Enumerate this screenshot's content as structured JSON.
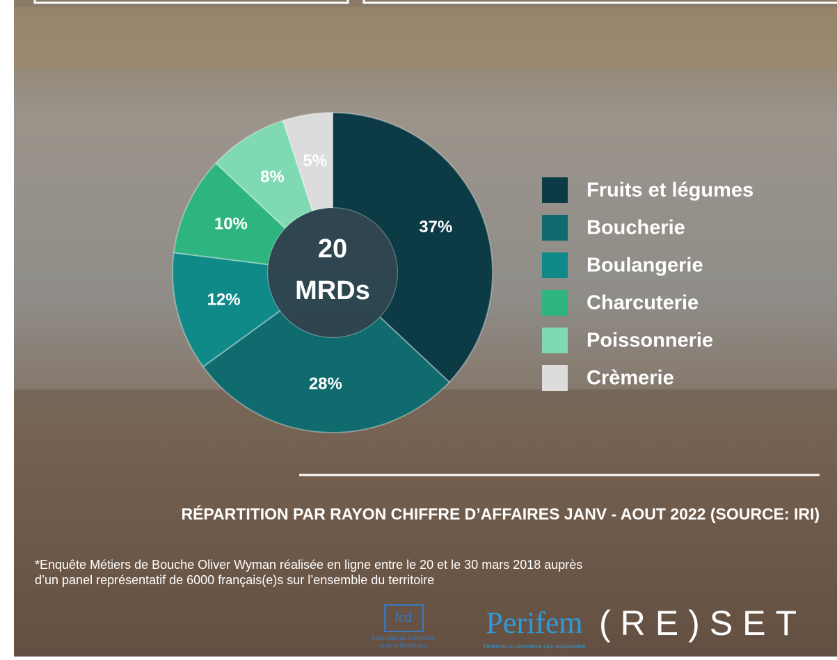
{
  "chart_data": {
    "type": "donut",
    "center_label": [
      "20",
      "MRDs"
    ],
    "categories": [
      "Fruits et légumes",
      "Boucherie",
      "Boulangerie",
      "Charcuterie",
      "Poissonnerie",
      "Crèmerie"
    ],
    "values": [
      37,
      28,
      12,
      10,
      8,
      5
    ],
    "value_labels": [
      "37%",
      "28%",
      "12%",
      "10%",
      "8%",
      "5%"
    ],
    "colors": [
      "#0c3a45",
      "#0f6b6d",
      "#0f8a89",
      "#2eb47e",
      "#7fdab3",
      "#dcdcdc"
    ],
    "legend": "right"
  },
  "caption": "RÉPARTITION PAR RAYON CHIFFRE D’AFFAIRES JANV - AOUT 2022 (SOURCE: IRI)",
  "footnote": [
    "*Enquête Métiers de Bouche Oliver Wyman réalisée en ligne entre le 20 et le 30 mars 2018 auprès",
    "d’un panel représentatif de 6000 français(e)s sur l’ensemble du territoire"
  ],
  "logos": {
    "fcd": "fcd",
    "fcd_sub": [
      "Fédération du Commerce",
      "et de la Distribution"
    ],
    "perifem": "Perifem",
    "perifem_sub": "Fédérons un commerce plus responsable",
    "reset": "(RE)SET"
  }
}
